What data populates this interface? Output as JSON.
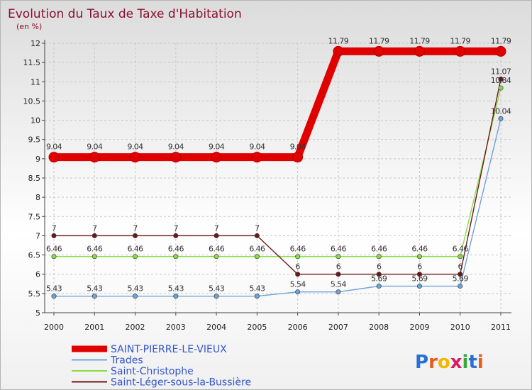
{
  "chart_data": {
    "type": "line",
    "title": "Evolution du Taux de Taxe d'Habitation",
    "subtitle": "(en %)",
    "xlabel": "",
    "ylabel": "",
    "categories": [
      "2000",
      "2001",
      "2002",
      "2003",
      "2004",
      "2005",
      "2006",
      "2007",
      "2008",
      "2009",
      "2010",
      "2011"
    ],
    "ylim": [
      5,
      12
    ],
    "yticks": [
      "5",
      "5.5",
      "6",
      "6.5",
      "7",
      "7.5",
      "8",
      "8.5",
      "9",
      "9.5",
      "10",
      "10.5",
      "11",
      "11.5",
      "12"
    ],
    "series": [
      {
        "name": "SAINT-PIERRE-LE-VIEUX",
        "color": "#e00000",
        "values": [
          9.04,
          9.04,
          9.04,
          9.04,
          9.04,
          9.04,
          9.04,
          11.79,
          11.79,
          11.79,
          11.79,
          11.79
        ],
        "labels": [
          "9.04",
          "9.04",
          "9.04",
          "9.04",
          "9.04",
          "9.04",
          "9.04",
          "11.79",
          "11.79",
          "11.79",
          "11.79",
          "11.79"
        ]
      },
      {
        "name": "Trades",
        "color": "#6fa3d6",
        "values": [
          5.43,
          5.43,
          5.43,
          5.43,
          5.43,
          5.43,
          5.54,
          5.54,
          5.69,
          5.69,
          5.69,
          10.04
        ],
        "labels": [
          "5.43",
          "5.43",
          "5.43",
          "5.43",
          "5.43",
          "5.43",
          "5.54",
          "5.54",
          "5.69",
          "5.69",
          "5.69",
          "10.04"
        ]
      },
      {
        "name": "Saint-Christophe",
        "color": "#88dd44",
        "values": [
          6.46,
          6.46,
          6.46,
          6.46,
          6.46,
          6.46,
          6.46,
          6.46,
          6.46,
          6.46,
          6.46,
          10.84
        ],
        "labels": [
          "6.46",
          "6.46",
          "6.46",
          "6.46",
          "6.46",
          "6.46",
          "6.46",
          "6.46",
          "6.46",
          "6.46",
          "6.46",
          "10.84"
        ]
      },
      {
        "name": "Saint-Léger-sous-la-Bussière",
        "color": "#6b1a1a",
        "values": [
          7,
          7,
          7,
          7,
          7,
          7,
          6,
          6,
          6,
          6,
          6,
          11.07
        ],
        "labels": [
          "7",
          "7",
          "7",
          "7",
          "7",
          "7",
          "6",
          "6",
          "6",
          "6",
          "6",
          "11.07"
        ]
      }
    ]
  },
  "logo": {
    "text": "Proxiti",
    "letters": [
      {
        "char": "P",
        "color": "#2a6fd6"
      },
      {
        "char": "r",
        "color": "#e85b1c"
      },
      {
        "char": "o",
        "color": "#f2b800"
      },
      {
        "char": "x",
        "color": "#d81b60"
      },
      {
        "char": "i",
        "color": "#3aa83a"
      },
      {
        "char": "t",
        "color": "#2a6fd6"
      },
      {
        "char": "i",
        "color": "#e85b1c"
      }
    ]
  }
}
